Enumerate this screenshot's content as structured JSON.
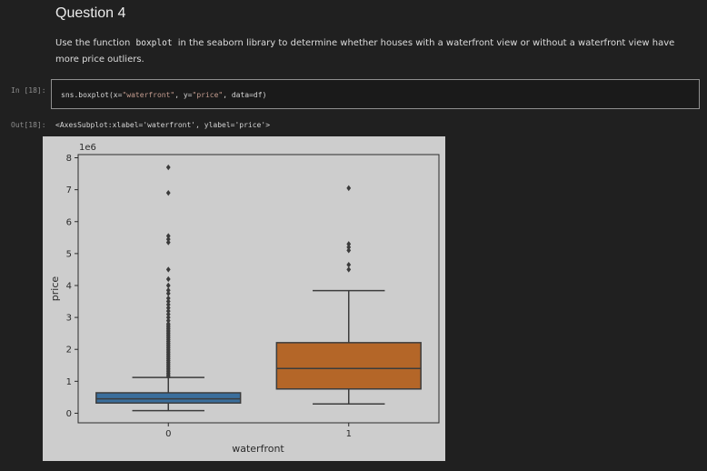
{
  "markdown": {
    "heading": "Question 4",
    "text_before": "Use the function",
    "code_word": "boxplot",
    "text_after": "in the seaborn library to determine whether houses with a waterfront view or without a waterfront view have more price outliers."
  },
  "cell_in": {
    "prompt": "In [18]:",
    "code_pre": "sns.boxplot(x=",
    "code_x": "\"waterfront\"",
    "code_mid": ", y=",
    "code_y": "\"price\"",
    "code_post": ", data=df)"
  },
  "cell_out": {
    "prompt": "Out[18]:",
    "text": "<AxesSubplot:xlabel='waterfront', ylabel='price'>"
  },
  "colors": {
    "box_0": "#3a6e9c",
    "box_1": "#b46628",
    "background": "#cdcdcd"
  },
  "chart_data": {
    "type": "box",
    "xlabel": "waterfront",
    "ylabel": "price",
    "y_multiplier_label": "1e6",
    "categories": [
      "0",
      "1"
    ],
    "ylim": [
      -0.3,
      8.1
    ],
    "yticks": [
      "0",
      "1",
      "2",
      "3",
      "4",
      "5",
      "6",
      "7",
      "8"
    ],
    "boxes": [
      {
        "category": "0",
        "whisker_low": 0.08,
        "q1": 0.32,
        "median": 0.45,
        "q3": 0.64,
        "whisker_high": 1.12,
        "outliers": [
          1.15,
          1.2,
          1.25,
          1.3,
          1.35,
          1.4,
          1.45,
          1.5,
          1.55,
          1.6,
          1.65,
          1.7,
          1.75,
          1.8,
          1.85,
          1.9,
          1.95,
          2.0,
          2.05,
          2.1,
          2.15,
          2.2,
          2.25,
          2.3,
          2.35,
          2.4,
          2.45,
          2.5,
          2.55,
          2.6,
          2.65,
          2.7,
          2.75,
          2.8,
          2.9,
          3.0,
          3.1,
          3.2,
          3.3,
          3.4,
          3.5,
          3.6,
          3.75,
          3.85,
          4.0,
          4.2,
          4.5,
          5.35,
          5.45,
          5.55,
          6.9,
          7.7
        ]
      },
      {
        "category": "1",
        "whisker_low": 0.29,
        "q1": 0.76,
        "median": 1.4,
        "q3": 2.21,
        "whisker_high": 3.84,
        "outliers": [
          4.5,
          4.65,
          5.1,
          5.2,
          5.3,
          7.05
        ]
      }
    ]
  }
}
